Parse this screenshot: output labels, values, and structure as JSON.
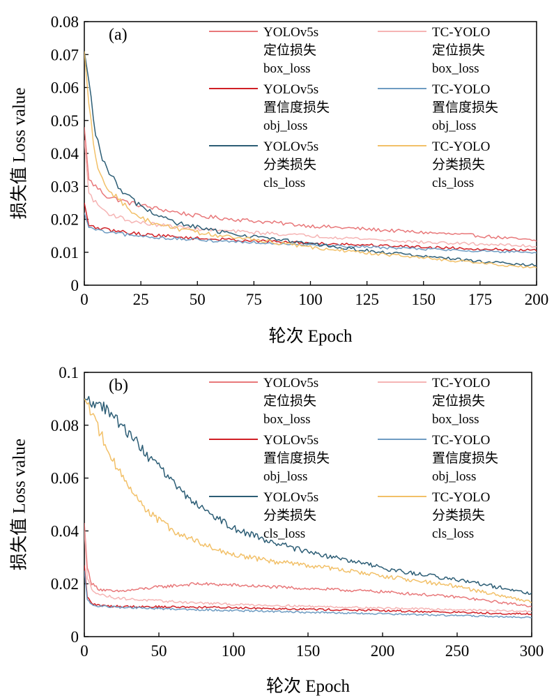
{
  "colors": {
    "yolo_box": "#e8787a",
    "tc_box": "#f5b4b4",
    "yolo_obj": "#d01f25",
    "tc_obj": "#6f9cc2",
    "yolo_cls": "#2c5d75",
    "tc_cls": "#f2c068"
  },
  "chart_data": [
    {
      "type": "line",
      "panel_label": "(a)",
      "xlabel": "轮次 Epoch",
      "ylabel": "损失值 Loss value",
      "xlim": [
        0,
        200
      ],
      "ylim": [
        0,
        0.08
      ],
      "xticks": [
        "0",
        "25",
        "50",
        "75",
        "100",
        "125",
        "150",
        "175",
        "200"
      ],
      "yticks": [
        "0",
        "0.01",
        "0.02",
        "0.03",
        "0.04",
        "0.05",
        "0.06",
        "0.07",
        "0.08"
      ],
      "grid": false,
      "legend_position": "top-right",
      "series": [
        {
          "name": "YOLOv5s 定位损失 box_loss",
          "legend_lines": [
            "YOLOv5s",
            "定位损失",
            "box_loss"
          ],
          "color_key": "yolo_box",
          "x": [
            0,
            2,
            5,
            10,
            20,
            30,
            50,
            75,
            100,
            125,
            150,
            175,
            200
          ],
          "y": [
            0.048,
            0.032,
            0.03,
            0.027,
            0.025,
            0.0235,
            0.021,
            0.0195,
            0.018,
            0.017,
            0.016,
            0.015,
            0.0135
          ]
        },
        {
          "name": "TC-YOLO 定位损失 box_loss",
          "legend_lines": [
            "TC-YOLO",
            "定位损失",
            "box_loss"
          ],
          "color_key": "tc_box",
          "x": [
            0,
            2,
            5,
            10,
            20,
            30,
            50,
            75,
            100,
            125,
            150,
            175,
            200
          ],
          "y": [
            0.044,
            0.028,
            0.025,
            0.022,
            0.0195,
            0.0185,
            0.017,
            0.016,
            0.015,
            0.014,
            0.013,
            0.0125,
            0.0118
          ]
        },
        {
          "name": "YOLOv5s 置信度损失 obj_loss",
          "legend_lines": [
            "YOLOv5s",
            "置信度损失",
            "obj_loss"
          ],
          "color_key": "yolo_obj",
          "x": [
            0,
            2,
            5,
            10,
            25,
            50,
            75,
            100,
            125,
            150,
            175,
            200
          ],
          "y": [
            0.025,
            0.018,
            0.0175,
            0.0168,
            0.0155,
            0.0142,
            0.0135,
            0.0128,
            0.0122,
            0.0116,
            0.011,
            0.0105
          ]
        },
        {
          "name": "TC-YOLO 置信度损失 obj_loss",
          "legend_lines": [
            "TC-YOLO",
            "置信度损失",
            "obj_loss"
          ],
          "color_key": "tc_obj",
          "x": [
            0,
            2,
            5,
            10,
            25,
            50,
            75,
            100,
            125,
            150,
            175,
            200
          ],
          "y": [
            0.022,
            0.0175,
            0.0168,
            0.016,
            0.0148,
            0.0137,
            0.013,
            0.0123,
            0.0116,
            0.011,
            0.0104,
            0.0098
          ]
        },
        {
          "name": "YOLOv5s 分类损失 cls_loss",
          "legend_lines": [
            "YOLOv5s",
            "分类损失",
            "cls_loss"
          ],
          "color_key": "yolo_cls",
          "x": [
            0,
            2,
            5,
            10,
            15,
            20,
            25,
            30,
            40,
            50,
            60,
            75,
            100,
            125,
            150,
            175,
            200
          ],
          "y": [
            0.071,
            0.062,
            0.045,
            0.035,
            0.03,
            0.0265,
            0.024,
            0.022,
            0.019,
            0.0175,
            0.0162,
            0.0148,
            0.0125,
            0.0105,
            0.0088,
            0.0072,
            0.006
          ]
        },
        {
          "name": "TC-YOLO 分类损失 cls_loss",
          "legend_lines": [
            "TC-YOLO",
            "分类损失",
            "cls_loss"
          ],
          "color_key": "tc_cls",
          "x": [
            0,
            2,
            5,
            10,
            15,
            20,
            25,
            30,
            40,
            50,
            60,
            75,
            100,
            125,
            150,
            175,
            200
          ],
          "y": [
            0.071,
            0.055,
            0.038,
            0.03,
            0.026,
            0.023,
            0.0205,
            0.019,
            0.0172,
            0.016,
            0.015,
            0.0138,
            0.0115,
            0.0098,
            0.0083,
            0.0068,
            0.0052
          ]
        }
      ]
    },
    {
      "type": "line",
      "panel_label": "(b)",
      "xlabel": "轮次 Epoch",
      "ylabel": "损失值 Loss value",
      "xlim": [
        0,
        300
      ],
      "ylim": [
        0,
        0.1
      ],
      "xticks": [
        "0",
        "50",
        "100",
        "150",
        "200",
        "250",
        "300"
      ],
      "yticks": [
        "0",
        "0.02",
        "0.04",
        "0.06",
        "0.08",
        "0.1"
      ],
      "grid": false,
      "legend_position": "top-right",
      "series": [
        {
          "name": "YOLOv5s 定位损失 box_loss",
          "legend_lines": [
            "YOLOv5s",
            "定位损失",
            "box_loss"
          ],
          "color_key": "yolo_box",
          "x": [
            0,
            2,
            5,
            10,
            20,
            30,
            50,
            75,
            100,
            150,
            200,
            250,
            300
          ],
          "y": [
            0.043,
            0.026,
            0.02,
            0.018,
            0.017,
            0.0175,
            0.0188,
            0.02,
            0.0195,
            0.0182,
            0.017,
            0.015,
            0.0115
          ]
        },
        {
          "name": "TC-YOLO 定位损失 box_loss",
          "legend_lines": [
            "TC-YOLO",
            "定位损失",
            "box_loss"
          ],
          "color_key": "tc_box",
          "x": [
            0,
            2,
            5,
            10,
            20,
            30,
            50,
            75,
            100,
            150,
            200,
            250,
            300
          ],
          "y": [
            0.04,
            0.022,
            0.018,
            0.016,
            0.0148,
            0.0142,
            0.0135,
            0.0128,
            0.0122,
            0.0115,
            0.0108,
            0.0102,
            0.0095
          ]
        },
        {
          "name": "YOLOv5s 置信度损失 obj_loss",
          "legend_lines": [
            "YOLOv5s",
            "置信度损失",
            "obj_loss"
          ],
          "color_key": "yolo_obj",
          "x": [
            0,
            2,
            5,
            10,
            20,
            50,
            100,
            150,
            200,
            250,
            300
          ],
          "y": [
            0.027,
            0.015,
            0.0125,
            0.0118,
            0.0115,
            0.0113,
            0.011,
            0.0104,
            0.0098,
            0.0092,
            0.0085
          ]
        },
        {
          "name": "TC-YOLO 置信度损失 obj_loss",
          "legend_lines": [
            "TC-YOLO",
            "置信度损失",
            "obj_loss"
          ],
          "color_key": "tc_obj",
          "x": [
            0,
            2,
            5,
            10,
            20,
            50,
            100,
            150,
            200,
            250,
            300
          ],
          "y": [
            0.025,
            0.014,
            0.012,
            0.0115,
            0.0112,
            0.0106,
            0.0099,
            0.0092,
            0.0086,
            0.008,
            0.0072
          ]
        },
        {
          "name": "YOLOv5s 分类损失 cls_loss",
          "legend_lines": [
            "YOLOv5s",
            "分类损失",
            "cls_loss"
          ],
          "color_key": "yolo_cls",
          "x": [
            0,
            5,
            10,
            20,
            30,
            40,
            50,
            60,
            75,
            100,
            125,
            150,
            175,
            200,
            225,
            250,
            275,
            300
          ],
          "y": [
            0.09,
            0.089,
            0.088,
            0.083,
            0.077,
            0.07,
            0.064,
            0.058,
            0.05,
            0.041,
            0.036,
            0.032,
            0.029,
            0.026,
            0.0235,
            0.0215,
            0.019,
            0.016
          ]
        },
        {
          "name": "TC-YOLO 分类损失 cls_loss",
          "legend_lines": [
            "TC-YOLO",
            "分类损失",
            "cls_loss"
          ],
          "color_key": "tc_cls",
          "x": [
            0,
            5,
            10,
            20,
            30,
            40,
            50,
            60,
            75,
            100,
            125,
            150,
            175,
            200,
            225,
            250,
            275,
            300
          ],
          "y": [
            0.09,
            0.085,
            0.078,
            0.066,
            0.056,
            0.049,
            0.044,
            0.04,
            0.036,
            0.031,
            0.0285,
            0.027,
            0.025,
            0.023,
            0.021,
            0.019,
            0.016,
            0.013
          ]
        }
      ]
    }
  ]
}
